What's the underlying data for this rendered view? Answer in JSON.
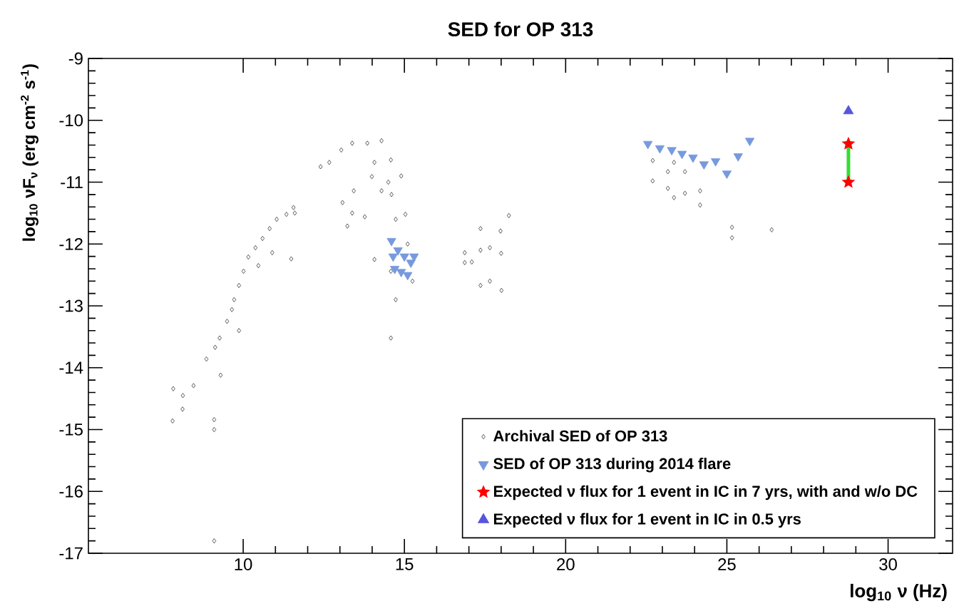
{
  "chart_data": {
    "type": "scatter",
    "title": "SED for OP 313",
    "xlabel": "log$_{10}$ ν (Hz)",
    "ylabel": "log$_{10}$ νF$_{ν}$ (erg cm$^{-2}$ s$^{-1}$)",
    "xlim": [
      5.2,
      32
    ],
    "ylim": [
      -17,
      -9
    ],
    "xticks": [
      10,
      15,
      20,
      25,
      30
    ],
    "yticks": [
      -17,
      -16,
      -15,
      -14,
      -13,
      -12,
      -11,
      -10,
      -9
    ],
    "grid": false,
    "legend": "bottom right",
    "series": [
      {
        "name": "Archival SED of OP 313",
        "type": "scatter",
        "marker": "diamond",
        "color": "#333333",
        "x": [
          7.81,
          7.83,
          8.12,
          8.46,
          9.1,
          8.86,
          9.13,
          9.27,
          9.5,
          9.65,
          9.72,
          9.87,
          10.01,
          10.16,
          10.38,
          10.6,
          10.82,
          11.04,
          11.34,
          11.56,
          11.6,
          11.49,
          9.87,
          9.3,
          8.13,
          10.47,
          10.9,
          9.1,
          9.1,
          12.4,
          12.67,
          13.04,
          13.38,
          13.85,
          14.29,
          14.07,
          13.99,
          14.29,
          13.43,
          13.08,
          13.38,
          13.23,
          13.77,
          14.07,
          14.58,
          14.6,
          14.73,
          15.03,
          15.1,
          14.58,
          14.73,
          14.58,
          15.25,
          14.5,
          14.9,
          16.87,
          16.87,
          17.09,
          17.36,
          17.36,
          17.36,
          17.65,
          17.65,
          17.98,
          18.0,
          18.01,
          18.24,
          22.7,
          22.7,
          23.17,
          23.17,
          23.36,
          23.36,
          23.7,
          23.7,
          24.17,
          24.17,
          25.16,
          25.16,
          26.39
        ],
        "values": [
          -14.86,
          -14.34,
          -14.67,
          -14.29,
          -14.84,
          -13.86,
          -13.67,
          -13.52,
          -13.25,
          -13.06,
          -12.9,
          -12.67,
          -12.44,
          -12.21,
          -12.06,
          -11.91,
          -11.75,
          -11.6,
          -11.52,
          -11.41,
          -11.5,
          -12.24,
          -13.4,
          -14.12,
          -14.45,
          -12.35,
          -12.14,
          -15.0,
          -16.8,
          -10.75,
          -10.68,
          -10.48,
          -10.37,
          -10.37,
          -10.33,
          -10.68,
          -10.91,
          -11.14,
          -11.14,
          -11.33,
          -11.5,
          -11.71,
          -11.56,
          -12.25,
          -10.64,
          -11.2,
          -11.6,
          -11.52,
          -12.0,
          -12.44,
          -12.9,
          -13.52,
          -12.6,
          -11.0,
          -10.9,
          -12.14,
          -12.3,
          -12.29,
          -11.75,
          -12.1,
          -12.67,
          -12.06,
          -12.6,
          -11.79,
          -12.15,
          -12.75,
          -11.54,
          -10.65,
          -10.98,
          -10.83,
          -11.1,
          -10.68,
          -11.25,
          -10.83,
          -11.18,
          -11.14,
          -11.37,
          -11.73,
          -11.9,
          -11.77
        ]
      },
      {
        "name": "SED of OP 313 during 2014 flare",
        "type": "scatter",
        "marker": "triangle_down",
        "color": "#7799dd",
        "x": [
          22.55,
          22.92,
          23.29,
          23.61,
          23.95,
          24.29,
          24.65,
          25.0,
          25.35,
          25.71,
          14.6,
          14.8,
          15.0,
          15.2,
          14.7,
          14.9,
          15.1,
          15.3,
          14.65
        ],
        "values": [
          -10.38,
          -10.45,
          -10.48,
          -10.54,
          -10.6,
          -10.71,
          -10.66,
          -10.86,
          -10.58,
          -10.33,
          -11.95,
          -12.1,
          -12.2,
          -12.3,
          -12.4,
          -12.45,
          -12.5,
          -12.2,
          -12.2
        ]
      },
      {
        "type": "line",
        "marker": "none",
        "color": "#33dd33",
        "x": [
          28.77,
          28.77
        ],
        "values": [
          -10.38,
          -11.0
        ]
      },
      {
        "name": "Expected ν flux for 1 event in IC in 7 yrs, with and w/o DC",
        "type": "scatter",
        "marker": "star",
        "color": "#ff0000",
        "x": [
          28.77,
          28.77
        ],
        "values": [
          -10.38,
          -11.0
        ]
      },
      {
        "name": "Expected ν flux for 1 event in IC in 0.5 yrs",
        "type": "scatter",
        "marker": "triangle",
        "color": "#5555dd",
        "x": [
          28.77
        ],
        "values": [
          -9.85
        ]
      }
    ]
  }
}
